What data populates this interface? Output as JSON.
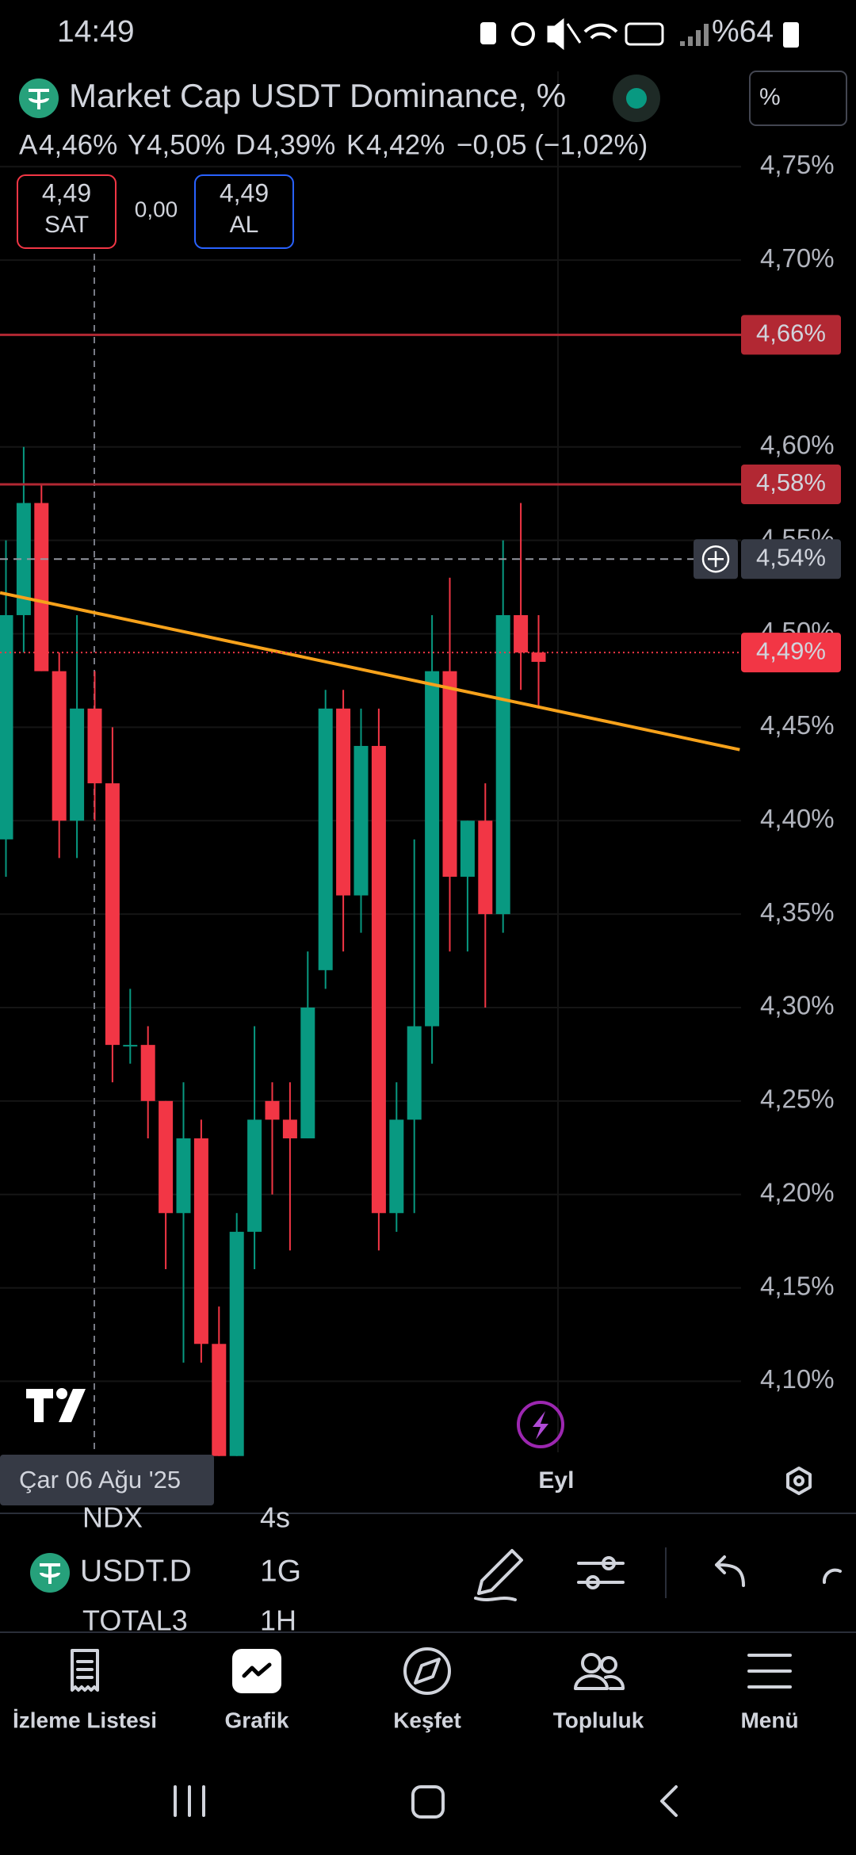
{
  "status_bar": {
    "time": "14:49",
    "battery": "%64"
  },
  "header": {
    "title": "Market Cap USDT Dominance, %",
    "scale_button": "%",
    "ohlc": [
      {
        "key": "A",
        "value": "4,46%"
      },
      {
        "key": "Y",
        "value": "4,50%"
      },
      {
        "key": "D",
        "value": "4,39%"
      },
      {
        "key": "K",
        "value": "4,42%"
      }
    ],
    "change": "−0,05 (−1,02%)"
  },
  "trade": {
    "sell_price": "4,49",
    "sell_label": "SAT",
    "spread": "0,00",
    "buy_price": "4,49",
    "buy_label": "AL"
  },
  "chart_data": {
    "type": "candlestick",
    "categories": [
      null,
      null,
      null,
      null,
      null,
      null,
      null,
      null,
      null,
      null,
      null,
      null,
      null,
      null,
      null,
      null,
      null,
      null,
      null,
      null,
      null,
      null,
      null,
      null,
      null,
      null,
      null,
      null,
      null,
      null,
      null,
      "Eyl"
    ],
    "open": [
      4.39,
      4.51,
      4.57,
      4.48,
      4.4,
      4.46,
      4.42,
      4.28,
      4.28,
      4.25,
      4.19,
      4.23,
      4.12,
      4.06,
      4.18,
      4.25,
      4.24,
      4.23,
      4.32,
      4.46,
      4.36,
      4.44,
      4.19,
      4.24,
      4.29,
      4.48,
      4.37,
      4.4,
      4.35,
      4.51,
      4.49,
      null
    ],
    "high": [
      4.55,
      4.6,
      4.58,
      4.49,
      4.51,
      4.48,
      4.45,
      4.31,
      4.29,
      4.25,
      4.26,
      4.24,
      4.14,
      4.19,
      4.29,
      4.26,
      4.26,
      4.33,
      4.47,
      4.47,
      4.46,
      4.46,
      4.26,
      4.39,
      4.51,
      4.53,
      4.4,
      4.42,
      4.55,
      4.57,
      4.51,
      null
    ],
    "low": [
      4.37,
      4.49,
      4.48,
      4.38,
      4.38,
      4.4,
      4.26,
      4.27,
      4.23,
      4.16,
      4.11,
      4.11,
      4.06,
      4.06,
      4.16,
      4.2,
      4.17,
      4.23,
      4.31,
      4.33,
      4.34,
      4.17,
      4.18,
      4.19,
      4.27,
      4.33,
      4.33,
      4.3,
      4.34,
      4.47,
      4.46,
      null
    ],
    "close": [
      4.51,
      4.57,
      4.48,
      4.4,
      4.46,
      4.42,
      4.28,
      4.28,
      4.25,
      4.19,
      4.23,
      4.12,
      4.06,
      4.18,
      4.24,
      4.24,
      4.23,
      4.3,
      4.46,
      4.36,
      4.44,
      4.19,
      4.24,
      4.29,
      4.48,
      4.37,
      4.4,
      4.35,
      4.51,
      4.49,
      4.485,
      null
    ],
    "up_color": "#089981",
    "down_color": "#f23645",
    "ylim": [
      4.062,
      4.801
    ],
    "yticks": [
      {
        "value": 4.75,
        "label": "4,75%"
      },
      {
        "value": 4.7,
        "label": "4,70%"
      },
      {
        "value": 4.6,
        "label": "4,60%"
      },
      {
        "value": 4.55,
        "label": "4,55%"
      },
      {
        "value": 4.5,
        "label": "4,50%"
      },
      {
        "value": 4.45,
        "label": "4,45%"
      },
      {
        "value": 4.4,
        "label": "4,40%"
      },
      {
        "value": 4.35,
        "label": "4,35%"
      },
      {
        "value": 4.3,
        "label": "4,30%"
      },
      {
        "value": 4.25,
        "label": "4,25%"
      },
      {
        "value": 4.2,
        "label": "4,20%"
      },
      {
        "value": 4.15,
        "label": "4,15%"
      },
      {
        "value": 4.1,
        "label": "4,10%"
      }
    ],
    "grid": true,
    "levels": [
      {
        "value": 4.66,
        "label": "4,66%",
        "color": "#b22833"
      },
      {
        "value": 4.58,
        "label": "4,58%",
        "color": "#b22833"
      }
    ],
    "crosshair": {
      "value": 4.54,
      "label": "4,54%",
      "date": "Çar 06 Ağu '25"
    },
    "last_price": {
      "value": 4.49,
      "label": "4,49%",
      "color": "#f23645"
    },
    "trendline": {
      "color": "#f7a21b",
      "x": [
        -0.33,
        41.33
      ],
      "values": [
        4.522,
        4.438
      ]
    }
  },
  "toolbar": {
    "symbol": "USDT.D",
    "interval": "1G",
    "picker_above": [
      "NDX",
      "4s"
    ],
    "picker_below": [
      "TOTAL3",
      "1H"
    ]
  },
  "nav": {
    "items": [
      "İzleme Listesi",
      "Grafik",
      "Keşfet",
      "Topluluk",
      "Menü"
    ]
  }
}
